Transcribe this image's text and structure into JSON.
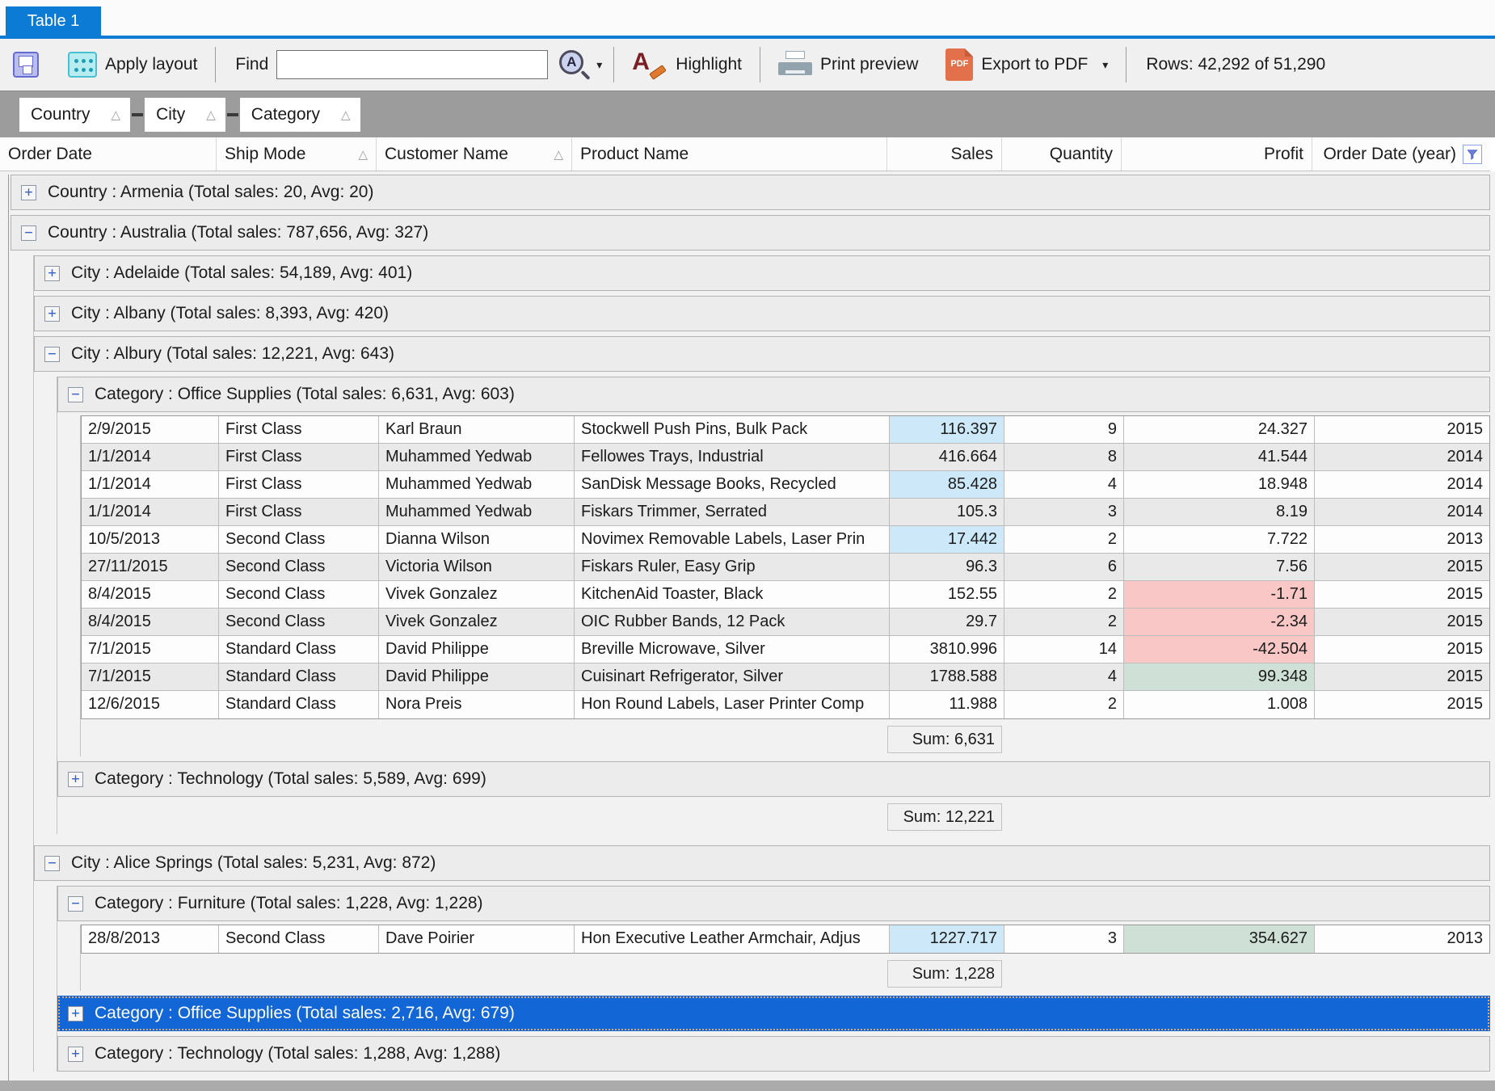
{
  "tab": {
    "title": "Table 1"
  },
  "toolbar": {
    "save_icon": "save",
    "apply_layout_label": "Apply layout",
    "find_label": "Find",
    "find_value": "",
    "search_icon": "search-in-column",
    "highlight_label": "Highlight",
    "print_preview_label": "Print preview",
    "export_pdf_label": "Export to PDF",
    "rows_status": "Rows: 42,292 of 51,290"
  },
  "group_bar": {
    "chips": [
      {
        "label": "Country",
        "sort_icon": "triangle-up"
      },
      {
        "label": "City",
        "sort_icon": "triangle-up"
      },
      {
        "label": "Category",
        "sort_icon": "triangle-up"
      }
    ]
  },
  "columns": [
    {
      "key": "order_date",
      "label": "Order Date",
      "sort": false,
      "align": "left"
    },
    {
      "key": "ship_mode",
      "label": "Ship Mode",
      "sort": true,
      "align": "left"
    },
    {
      "key": "customer_name",
      "label": "Customer Name",
      "sort": true,
      "align": "left"
    },
    {
      "key": "product_name",
      "label": "Product Name",
      "sort": false,
      "align": "left"
    },
    {
      "key": "sales",
      "label": "Sales",
      "sort": false,
      "align": "right"
    },
    {
      "key": "quantity",
      "label": "Quantity",
      "sort": false,
      "align": "right"
    },
    {
      "key": "profit",
      "label": "Profit",
      "sort": false,
      "align": "right"
    },
    {
      "key": "year",
      "label": "Order Date (year)",
      "sort": false,
      "align": "right",
      "filter": true
    }
  ],
  "colors": {
    "accent_blue": "#0c7bd6",
    "selection_blue": "#1266d6",
    "sales_highlight": "#cde9f9",
    "profit_negative": "#f9c7c5",
    "profit_positive": "#cfe1d6"
  },
  "grid": {
    "groups": [
      {
        "label": "Country : Armenia (Total sales: 20, Avg: 20)",
        "expanded": false
      },
      {
        "label": "Country : Australia (Total sales: 787,656, Avg: 327)",
        "expanded": true,
        "children": [
          {
            "label": "City : Adelaide (Total sales: 54,189, Avg: 401)",
            "expanded": false
          },
          {
            "label": "City : Albany (Total sales: 8,393, Avg: 420)",
            "expanded": false
          },
          {
            "label": "City : Albury (Total sales: 12,221, Avg: 643)",
            "expanded": true,
            "sum": "Sum: 12,221",
            "children": [
              {
                "label": "Category : Office Supplies (Total sales: 6,631, Avg: 603)",
                "expanded": true,
                "sum": "Sum: 6,631",
                "rows": [
                  {
                    "order_date": "2/9/2015",
                    "ship_mode": "First Class",
                    "customer_name": "Karl Braun",
                    "product_name": "Stockwell Push Pins, Bulk Pack",
                    "sales": "116.397",
                    "quantity": "9",
                    "profit": "24.327",
                    "year": "2015",
                    "sales_hl": true
                  },
                  {
                    "order_date": "1/1/2014",
                    "ship_mode": "First Class",
                    "customer_name": "Muhammed Yedwab",
                    "product_name": "Fellowes Trays, Industrial",
                    "sales": "416.664",
                    "quantity": "8",
                    "profit": "41.544",
                    "year": "2014"
                  },
                  {
                    "order_date": "1/1/2014",
                    "ship_mode": "First Class",
                    "customer_name": "Muhammed Yedwab",
                    "product_name": "SanDisk Message Books, Recycled",
                    "sales": "85.428",
                    "quantity": "4",
                    "profit": "18.948",
                    "year": "2014",
                    "sales_hl": true
                  },
                  {
                    "order_date": "1/1/2014",
                    "ship_mode": "First Class",
                    "customer_name": "Muhammed Yedwab",
                    "product_name": "Fiskars Trimmer, Serrated",
                    "sales": "105.3",
                    "quantity": "3",
                    "profit": "8.19",
                    "year": "2014"
                  },
                  {
                    "order_date": "10/5/2013",
                    "ship_mode": "Second Class",
                    "customer_name": "Dianna Wilson",
                    "product_name": "Novimex Removable Labels, Laser Prin",
                    "sales": "17.442",
                    "quantity": "2",
                    "profit": "7.722",
                    "year": "2013",
                    "sales_hl": true
                  },
                  {
                    "order_date": "27/11/2015",
                    "ship_mode": "Second Class",
                    "customer_name": "Victoria Wilson",
                    "product_name": "Fiskars Ruler, Easy Grip",
                    "sales": "96.3",
                    "quantity": "6",
                    "profit": "7.56",
                    "year": "2015"
                  },
                  {
                    "order_date": "8/4/2015",
                    "ship_mode": "Second Class",
                    "customer_name": "Vivek Gonzalez",
                    "product_name": "KitchenAid Toaster, Black",
                    "sales": "152.55",
                    "quantity": "2",
                    "profit": "-1.71",
                    "year": "2015",
                    "profit_hl": "neg"
                  },
                  {
                    "order_date": "8/4/2015",
                    "ship_mode": "Second Class",
                    "customer_name": "Vivek Gonzalez",
                    "product_name": "OIC Rubber Bands, 12 Pack",
                    "sales": "29.7",
                    "quantity": "2",
                    "profit": "-2.34",
                    "year": "2015",
                    "profit_hl": "neg"
                  },
                  {
                    "order_date": "7/1/2015",
                    "ship_mode": "Standard Class",
                    "customer_name": "David Philippe",
                    "product_name": "Breville Microwave, Silver",
                    "sales": "3810.996",
                    "quantity": "14",
                    "profit": "-42.504",
                    "year": "2015",
                    "profit_hl": "neg"
                  },
                  {
                    "order_date": "7/1/2015",
                    "ship_mode": "Standard Class",
                    "customer_name": "David Philippe",
                    "product_name": "Cuisinart Refrigerator, Silver",
                    "sales": "1788.588",
                    "quantity": "4",
                    "profit": "99.348",
                    "year": "2015",
                    "profit_hl": "pos"
                  },
                  {
                    "order_date": "12/6/2015",
                    "ship_mode": "Standard Class",
                    "customer_name": "Nora Preis",
                    "product_name": "Hon Round Labels, Laser Printer Comp",
                    "sales": "11.988",
                    "quantity": "2",
                    "profit": "1.008",
                    "year": "2015"
                  }
                ]
              },
              {
                "label": "Category : Technology (Total sales: 5,589, Avg: 699)",
                "expanded": false
              }
            ]
          },
          {
            "label": "City : Alice Springs (Total sales: 5,231, Avg: 872)",
            "expanded": true,
            "spaced": true,
            "children": [
              {
                "label": "Category : Furniture (Total sales: 1,228, Avg: 1,228)",
                "expanded": true,
                "sum": "Sum: 1,228",
                "rows": [
                  {
                    "order_date": "28/8/2013",
                    "ship_mode": "Second Class",
                    "customer_name": "Dave Poirier",
                    "product_name": "Hon Executive Leather Armchair, Adjus",
                    "sales": "1227.717",
                    "quantity": "3",
                    "profit": "354.627",
                    "year": "2013",
                    "sales_hl": true,
                    "profit_hl": "pos"
                  }
                ]
              },
              {
                "label": "Category : Office Supplies (Total sales: 2,716, Avg: 679)",
                "expanded": false,
                "selected": true
              },
              {
                "label": "Category : Technology (Total sales: 1,288, Avg: 1,288)",
                "expanded": false
              }
            ]
          }
        ]
      }
    ]
  }
}
